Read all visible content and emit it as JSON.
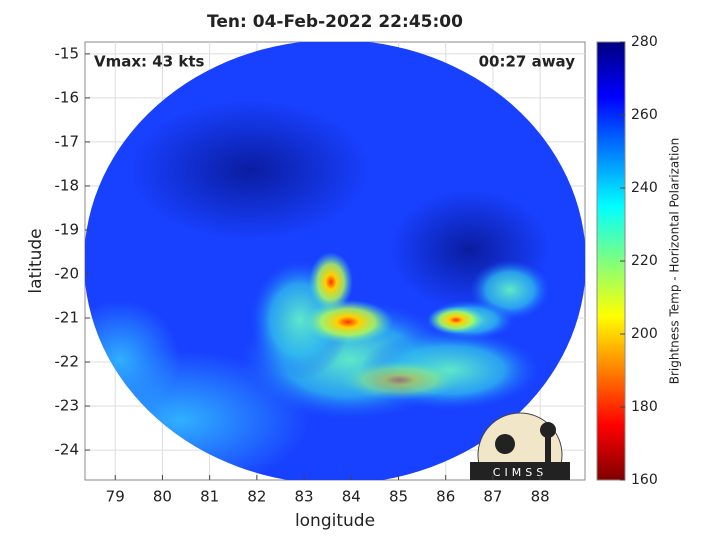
{
  "chart_data": {
    "type": "heatmap",
    "title": "Ten: 04-Feb-2022 22:45:00",
    "annotations": [
      "Vmax: 43 kts",
      "00:27 away"
    ],
    "x_label": "longitude",
    "y_label": "latitude",
    "xlim": [
      78.36,
      88.95
    ],
    "xticks": [
      79,
      80,
      81,
      82,
      83,
      84,
      85,
      86,
      87,
      88
    ],
    "ylim": [
      -24.68,
      -14.73
    ],
    "yticks": [
      -15,
      -16,
      -17,
      -18,
      -19,
      -20,
      -21,
      -22,
      -23,
      -24
    ],
    "grid": true,
    "colorbar": {
      "label": "Brightness Temp - Horizontal Polarization",
      "lim": [
        160,
        280
      ],
      "ticks": [
        160,
        180,
        200,
        220,
        240,
        260,
        280
      ]
    },
    "logo": "CIMSS"
  }
}
